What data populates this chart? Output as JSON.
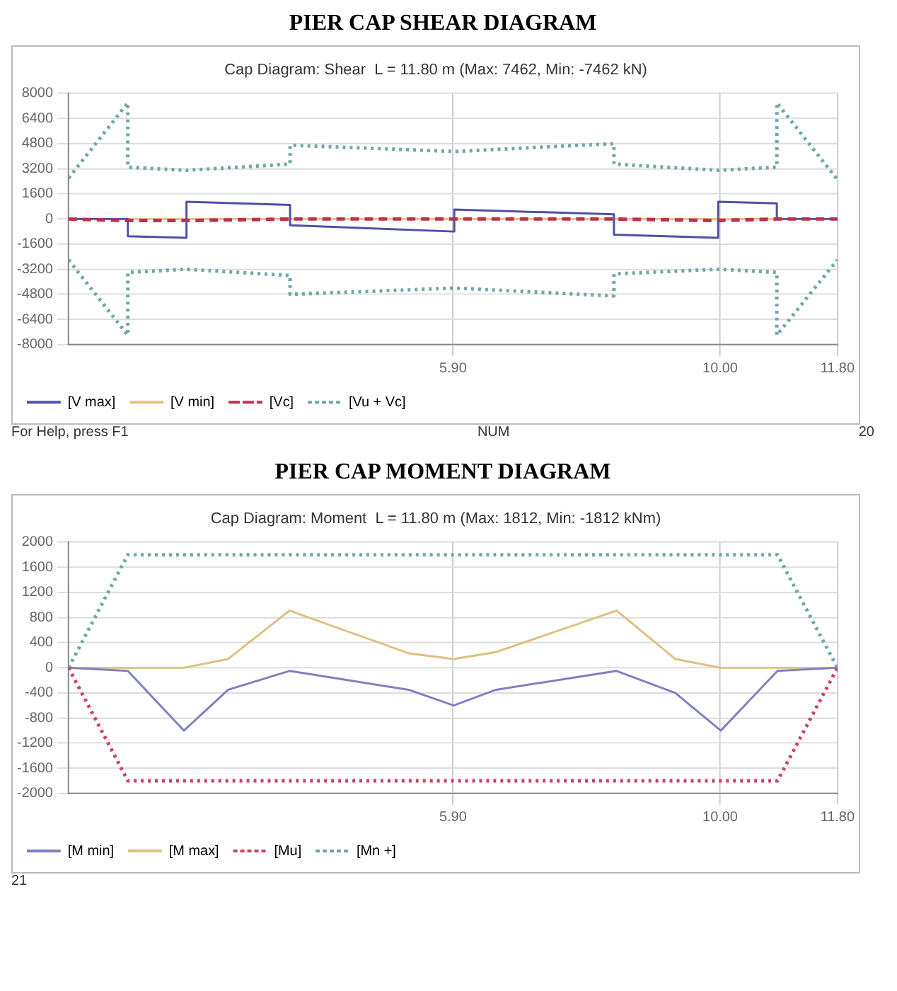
{
  "chart_data": [
    {
      "type": "line",
      "title": "PIER CAP SHEAR DIAGRAM",
      "subtitle": "Cap Diagram: Shear  L = 11.80 m (Max: 7462, Min: -7462 kN)",
      "xlim": [
        0,
        11.8
      ],
      "xticks": [
        {
          "value": 5.9,
          "label": "5.90"
        },
        {
          "value": 10,
          "label": "10.00"
        },
        {
          "value": 11.8,
          "label": "11.80"
        }
      ],
      "ylim": [
        -8000,
        8000
      ],
      "yticks": [
        -8000,
        -6400,
        -4800,
        -3200,
        -1600,
        0,
        1600,
        3200,
        4800,
        6400,
        8000
      ],
      "grid": true,
      "legend": "bottom left",
      "marker": "none",
      "annotations": [
        "For Help, press F1",
        "NUM",
        "20"
      ],
      "series": [
        {
          "name": "[V max]",
          "color": "#5050a8",
          "line_style": "solid",
          "x": [
            0,
            0.91,
            0.91,
            1.81,
            1.81,
            3.4,
            3.4,
            5.92,
            5.92,
            8.37,
            8.37,
            9.97,
            9.97,
            10.87,
            10.87,
            11.8
          ],
          "values": [
            0,
            0,
            -1100,
            -1200,
            1100,
            900,
            -400,
            -800,
            600,
            300,
            -1000,
            -1200,
            1100,
            1000,
            0,
            0
          ]
        },
        {
          "name": "[V min]",
          "color": "#e8c080",
          "line_style": "solid",
          "x": [
            0,
            11.8
          ],
          "values": [
            0,
            0
          ]
        },
        {
          "name": "[Vc]",
          "color": "#c03050",
          "line_style": "dashed",
          "x": [
            0,
            0.91,
            1.81,
            3.4,
            5.92,
            8.37,
            9.97,
            10.87,
            11.8
          ],
          "values": [
            0,
            -100,
            -100,
            0,
            0,
            0,
            -100,
            0,
            0
          ]
        },
        {
          "name": "[Vu + Vc]",
          "color": "#70a8a8",
          "line_style": "dotted",
          "x": [
            0,
            0.91,
            0.91,
            1.81,
            3.4,
            3.4,
            5.92,
            8.37,
            8.37,
            9.97,
            10.87,
            10.87,
            11.8
          ],
          "values": [
            2600,
            7400,
            3300,
            3100,
            3500,
            4700,
            4300,
            4800,
            3500,
            3100,
            3300,
            7400,
            2500
          ]
        },
        {
          "color": "#70a8a8",
          "line_style": "dotted",
          "x": [
            0,
            0.91,
            0.91,
            1.81,
            3.4,
            3.4,
            5.92,
            8.37,
            8.37,
            9.97,
            10.87,
            10.87,
            11.8
          ],
          "values": [
            -2600,
            -7400,
            -3400,
            -3200,
            -3600,
            -4800,
            -4400,
            -4900,
            -3500,
            -3200,
            -3400,
            -7400,
            -2600
          ]
        }
      ]
    },
    {
      "type": "line",
      "title": "PIER CAP MOMENT DIAGRAM",
      "subtitle": "Cap Diagram: Moment  L = 11.80 m (Max: 1812, Min: -1812 kNm)",
      "xlim": [
        0,
        11.8
      ],
      "xticks": [
        {
          "value": 5.9,
          "label": "5.90"
        },
        {
          "value": 10,
          "label": "10.00"
        },
        {
          "value": 11.8,
          "label": "11.80"
        }
      ],
      "ylim": [
        -2000,
        2000
      ],
      "yticks": [
        -2000,
        -1600,
        -1200,
        -800,
        -400,
        0,
        400,
        800,
        1200,
        1600,
        2000
      ],
      "grid": true,
      "legend": "bottom left",
      "marker": "none",
      "annotations": [
        "21"
      ],
      "series": [
        {
          "name": "[M min]",
          "color": "#8080c0",
          "line_style": "solid",
          "x": [
            0,
            0.91,
            1.77,
            2.45,
            3.39,
            5.22,
            5.91,
            6.56,
            8.41,
            9.31,
            10.01,
            10.88,
            11.8
          ],
          "values": [
            0,
            -50,
            -1000,
            -350,
            -50,
            -350,
            -600,
            -350,
            -50,
            -400,
            -1000,
            -50,
            0
          ]
        },
        {
          "name": "[M max]",
          "color": "#e0c080",
          "line_style": "solid",
          "x": [
            0,
            1.77,
            2.45,
            3.39,
            5.22,
            5.91,
            6.56,
            8.41,
            9.31,
            10.01,
            11.8
          ],
          "values": [
            0,
            0,
            140,
            910,
            230,
            140,
            250,
            910,
            140,
            0,
            0
          ]
        },
        {
          "name": "[Mu]",
          "color": "#d04060",
          "line_style": "dotted",
          "x": [
            0,
            0.91,
            10.88,
            11.8
          ],
          "values": [
            0,
            -1800,
            -1800,
            0
          ]
        },
        {
          "name": "[Mn +]",
          "color": "#70a8a8",
          "line_style": "dotted",
          "x": [
            0,
            0.91,
            10.88,
            11.8
          ],
          "values": [
            0,
            1800,
            1800,
            0
          ]
        }
      ]
    }
  ]
}
